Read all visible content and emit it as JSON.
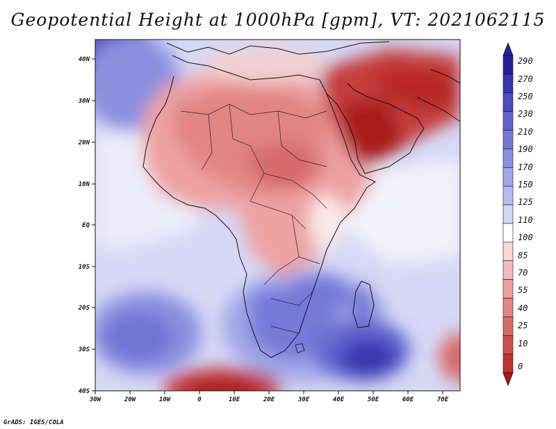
{
  "title": "Geopotential Height at 1000hPa [gpm], VT: 2021062115",
  "credit": "GrADS: IGES/COLA",
  "map": {
    "region": "Africa and surrounding oceans",
    "lon_labels": [
      "30W",
      "20W",
      "10W",
      "0",
      "10E",
      "20E",
      "30E",
      "40E",
      "50E",
      "60E",
      "70E"
    ],
    "lat_labels": [
      "40N",
      "30N",
      "20N",
      "10N",
      "EQ",
      "10S",
      "20S",
      "30S",
      "40S"
    ]
  },
  "colorbar": {
    "labels": [
      "290",
      "270",
      "250",
      "230",
      "210",
      "190",
      "170",
      "150",
      "125",
      "110",
      "100",
      "85",
      "70",
      "55",
      "40",
      "25",
      "10",
      "0"
    ],
    "colors": [
      "#2a1f96",
      "#3935b0",
      "#4b4cc2",
      "#5f63cf",
      "#7479d8",
      "#8b90e0",
      "#a1a6e8",
      "#b8bdf0",
      "#d3d6f6",
      "#ffffff",
      "#f7d7d7",
      "#f1bcbc",
      "#eaa1a1",
      "#e28585",
      "#d86a6a",
      "#cd4e4e",
      "#bf3232",
      "#a81a1a"
    ]
  }
}
